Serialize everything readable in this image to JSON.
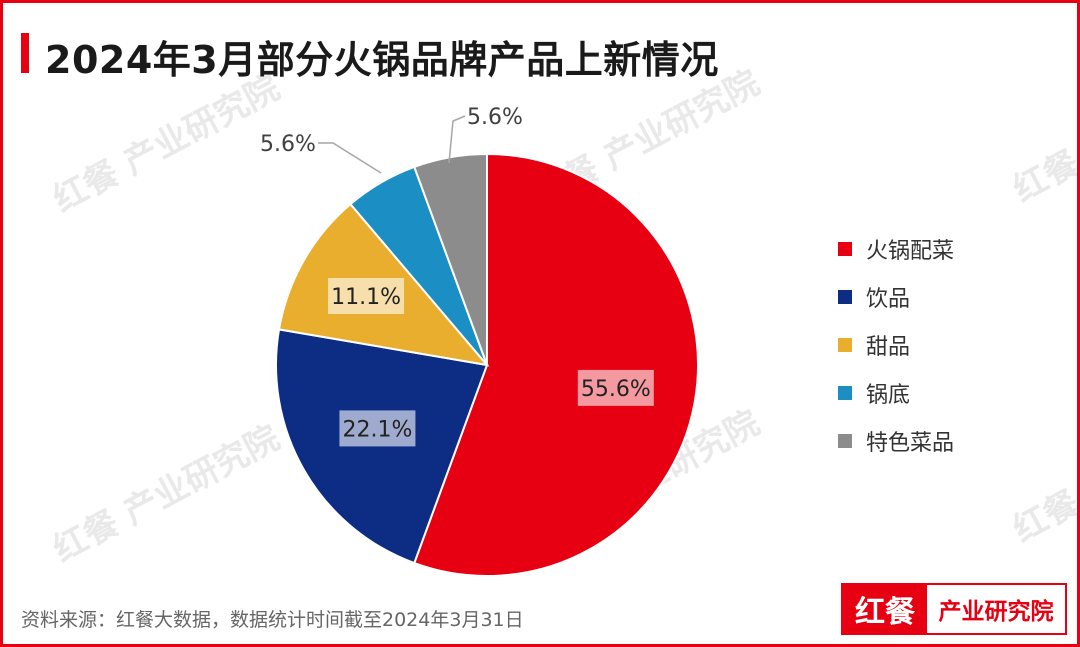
{
  "title": "2024年3月部分火锅品牌产品上新情况",
  "source_note": "资料来源：红餐大数据，数据统计时间截至2024年3月31日",
  "watermark_text": "红餐 产业研究院",
  "logo": {
    "left": "红餐",
    "right": "产业研究院"
  },
  "chart_data": {
    "type": "pie",
    "title": "2024年3月部分火锅品牌产品上新情况",
    "slices": [
      {
        "label": "火锅配菜",
        "value": 55.6,
        "value_label": "55.6%",
        "color": "#e60012"
      },
      {
        "label": "饮品",
        "value": 22.1,
        "value_label": "22.1%",
        "color": "#0d2c84"
      },
      {
        "label": "甜品",
        "value": 11.1,
        "value_label": "11.1%",
        "color": "#eaae2f"
      },
      {
        "label": "锅底",
        "value": 5.6,
        "value_label": "5.6%",
        "color": "#1b8ec3"
      },
      {
        "label": "特色菜品",
        "value": 5.6,
        "value_label": "5.6%",
        "color": "#8c8c8c"
      }
    ],
    "start_angle_deg": 0,
    "direction": "clockwise",
    "legend_position": "right"
  }
}
